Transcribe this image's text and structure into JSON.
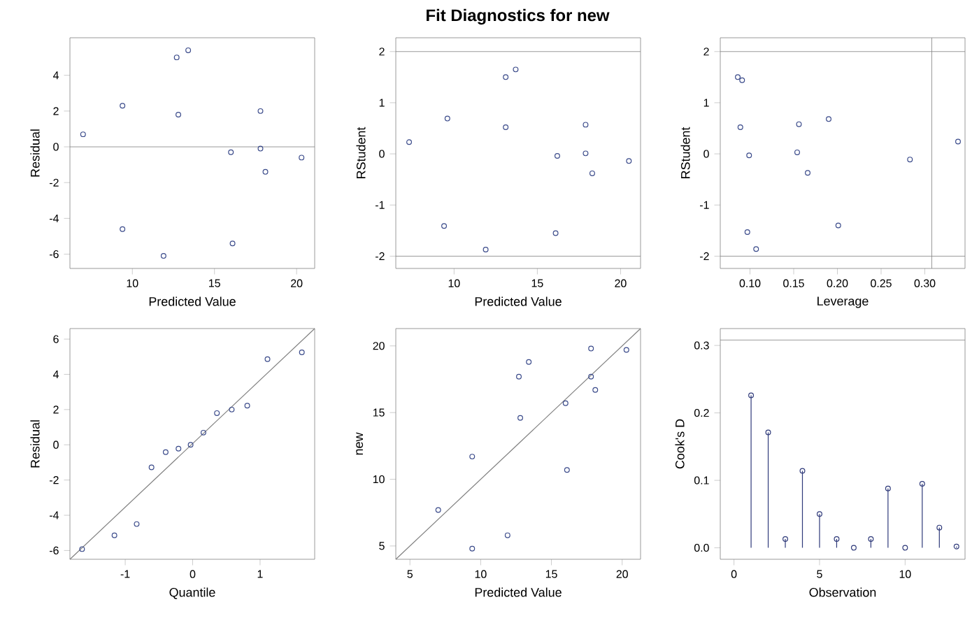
{
  "chart_data": [
    {
      "type": "scatter",
      "xlabel": "Predicted Value",
      "ylabel": "Residual",
      "xlim": [
        6.2,
        21.1
      ],
      "ylim": [
        -6.8,
        6.1
      ],
      "xticks": [
        10,
        15,
        20
      ],
      "yticks": [
        -6,
        -4,
        -2,
        0,
        2,
        4
      ],
      "marker": "circle",
      "series": [
        {
          "color": "#3a4a8a",
          "x": [
            7.0,
            9.4,
            9.4,
            11.9,
            12.8,
            12.7,
            13.4,
            16.0,
            16.1,
            18.1,
            17.8,
            17.8,
            20.3
          ],
          "values": [
            0.7,
            -4.6,
            2.3,
            -6.1,
            1.8,
            5.0,
            5.4,
            -0.3,
            -5.4,
            -1.4,
            -0.1,
            2.0,
            -0.6
          ]
        }
      ],
      "ref_lines": [
        {
          "axis": "y",
          "value": 0,
          "color": "#808080"
        }
      ]
    },
    {
      "type": "scatter",
      "title": "Fit Diagnostics for new",
      "xlabel": "Predicted Value",
      "ylabel": "RStudent",
      "xlim": [
        6.5,
        21.2
      ],
      "ylim": [
        -2.24,
        2.27
      ],
      "xticks": [
        10,
        15,
        20
      ],
      "yticks": [
        -2,
        -1,
        0,
        1,
        2
      ],
      "marker": "circle",
      "series": [
        {
          "color": "#3a4a8a",
          "x": [
            7.3,
            9.4,
            9.6,
            11.9,
            13.1,
            13.1,
            13.7,
            16.2,
            16.1,
            18.3,
            17.9,
            17.9,
            20.5
          ],
          "values": [
            0.23,
            -1.41,
            0.69,
            -1.87,
            0.52,
            1.5,
            1.65,
            -0.04,
            -1.55,
            -0.38,
            0.01,
            0.57,
            -0.14
          ]
        }
      ],
      "ref_lines": [
        {
          "axis": "y",
          "value": -2,
          "color": "#808080"
        },
        {
          "axis": "y",
          "value": 2,
          "color": "#808080"
        }
      ]
    },
    {
      "type": "scatter",
      "xlabel": "Leverage",
      "ylabel": "RStudent",
      "xlim": [
        0.066,
        0.346
      ],
      "ylim": [
        -2.24,
        2.27
      ],
      "xticks": [
        {
          "value": 0.1,
          "label": "0.10"
        },
        {
          "value": 0.15,
          "label": "0.15"
        },
        {
          "value": 0.2,
          "label": "0.20"
        },
        {
          "value": 0.25,
          "label": "0.25"
        },
        {
          "value": 0.3,
          "label": "0.30"
        }
      ],
      "yticks": [
        -2,
        -1,
        0,
        1,
        2
      ],
      "marker": "circle",
      "series": [
        {
          "color": "#3a4a8a",
          "x": [
            0.089,
            0.086,
            0.091,
            0.099,
            0.097,
            0.107,
            0.154,
            0.156,
            0.166,
            0.19,
            0.201,
            0.283,
            0.338
          ],
          "values": [
            0.52,
            1.5,
            1.44,
            -0.03,
            -1.53,
            -1.86,
            0.03,
            0.58,
            -0.37,
            0.68,
            -1.4,
            -0.11,
            0.24
          ]
        }
      ],
      "ref_lines": [
        {
          "axis": "y",
          "value": -2,
          "color": "#808080"
        },
        {
          "axis": "y",
          "value": 2,
          "color": "#808080"
        },
        {
          "axis": "x",
          "value": 0.308,
          "color": "#808080"
        }
      ]
    },
    {
      "type": "scatter",
      "xlabel": "Quantile",
      "ylabel": "Residual",
      "xlim": [
        -1.82,
        1.81
      ],
      "ylim": [
        -6.5,
        6.6
      ],
      "xticks": [
        -1,
        0,
        1
      ],
      "yticks": [
        -6,
        -4,
        -2,
        0,
        2,
        4,
        6
      ],
      "marker": "circle",
      "series": [
        {
          "color": "#3a4a8a",
          "x": [
            -1.64,
            -1.16,
            -0.83,
            -0.61,
            -0.4,
            -0.21,
            -0.03,
            0.16,
            0.36,
            0.58,
            0.81,
            1.11,
            1.62
          ],
          "values": [
            -5.92,
            -5.14,
            -4.5,
            -1.28,
            -0.42,
            -0.22,
            0,
            0.69,
            1.8,
            2.0,
            2.22,
            4.86,
            5.25
          ]
        },
        {
          "type": "line",
          "marker": "none",
          "color": "#808080",
          "x": [
            -1.82,
            1.81
          ],
          "values": [
            -6.5,
            6.6
          ]
        }
      ]
    },
    {
      "type": "scatter",
      "xlabel": "Predicted Value",
      "ylabel": "new",
      "xlim": [
        4.0,
        21.3
      ],
      "ylim": [
        4.0,
        21.3
      ],
      "xticks": [
        5,
        10,
        15,
        20
      ],
      "yticks": [
        5,
        10,
        15,
        20
      ],
      "marker": "circle",
      "series": [
        {
          "color": "#3a4a8a",
          "x": [
            7.0,
            9.4,
            9.4,
            11.9,
            12.8,
            12.7,
            13.4,
            16.0,
            16.1,
            18.1,
            17.8,
            17.8,
            20.3
          ],
          "values": [
            7.7,
            4.8,
            11.7,
            5.8,
            14.6,
            17.7,
            18.8,
            15.7,
            10.7,
            16.7,
            17.7,
            19.8,
            19.7
          ]
        },
        {
          "type": "line",
          "marker": "none",
          "color": "#808080",
          "x": [
            4.0,
            21.3
          ],
          "values": [
            4.0,
            21.3
          ]
        }
      ]
    },
    {
      "type": "lollipop",
      "xlabel": "Observation",
      "ylabel": "Cook's D",
      "xlim": [
        -0.8,
        13.5
      ],
      "ylim": [
        -0.017,
        0.325
      ],
      "xticks": [
        0,
        5,
        10
      ],
      "yticks": [
        {
          "value": 0,
          "label": "0.0"
        },
        {
          "value": 0.1,
          "label": "0.1"
        },
        {
          "value": 0.2,
          "label": "0.2"
        },
        {
          "value": 0.3,
          "label": "0.3"
        }
      ],
      "marker": "circle",
      "series": [
        {
          "color": "#2f3a7a",
          "x": [
            1,
            2,
            3,
            4,
            5,
            6,
            7,
            8,
            9,
            10,
            11,
            12,
            13
          ],
          "values": [
            0.226,
            0.171,
            0.013,
            0.114,
            0.05,
            0.013,
            0,
            0.013,
            0.088,
            0,
            0.095,
            0.03,
            0.002
          ]
        }
      ],
      "ref_lines": [
        {
          "axis": "y",
          "value": 0.308,
          "color": "#808080"
        }
      ]
    }
  ]
}
